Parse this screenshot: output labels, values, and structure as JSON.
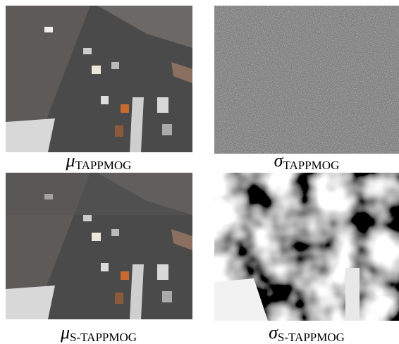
{
  "figure": {
    "panels": [
      {
        "symbol": "μ",
        "subscript": "TAPPMOG"
      },
      {
        "symbol": "σ",
        "subscript": "TAPPMOG"
      },
      {
        "symbol": "μ",
        "subscript": "S-TAPPMOG"
      },
      {
        "symbol": "σ",
        "subscript": "S-TAPPMOG"
      }
    ]
  }
}
